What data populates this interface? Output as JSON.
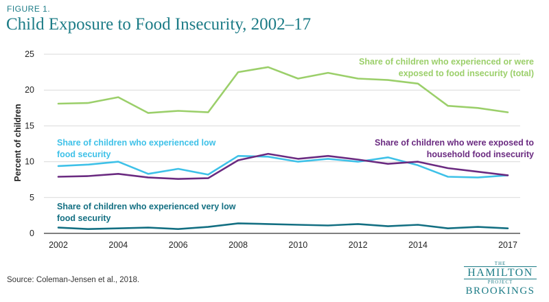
{
  "header": {
    "figure_label": "FIGURE 1.",
    "title": "Child Exposure to Food Insecurity, 2002–17"
  },
  "footer": {
    "source": "Source: Coleman-Jensen et al., 2018."
  },
  "logo": {
    "the": "THE",
    "hamilton": "HAMILTON",
    "project": "PROJECT",
    "brookings": "BROOKINGS"
  },
  "chart_data": {
    "type": "line",
    "title": "Child Exposure to Food Insecurity, 2002–17",
    "xlabel": "",
    "ylabel": "Percent of children",
    "ylim": [
      0,
      25
    ],
    "xlim": [
      2002,
      2017
    ],
    "y_ticks": [
      0,
      5,
      10,
      15,
      20,
      25
    ],
    "x_ticks": [
      2002,
      2004,
      2006,
      2008,
      2010,
      2012,
      2014,
      2017
    ],
    "grid": true,
    "x": [
      2002,
      2003,
      2004,
      2005,
      2006,
      2007,
      2008,
      2009,
      2010,
      2011,
      2012,
      2013,
      2014,
      2015,
      2016,
      2017
    ],
    "series": [
      {
        "name": "Share of children who experienced or were exposed to food insecurity (total)",
        "label_lines": [
          "Share of children who experienced or were",
          "exposed to food insecurity (total)"
        ],
        "color": "#9bcf6a",
        "values": [
          18.1,
          18.2,
          19.0,
          16.8,
          17.1,
          16.9,
          22.5,
          23.2,
          21.6,
          22.4,
          21.6,
          21.4,
          20.9,
          17.8,
          17.5,
          16.9
        ]
      },
      {
        "name": "Share of children who experienced low food security",
        "label_lines": [
          "Share of children who experienced low",
          "food security"
        ],
        "color": "#3ec1e8",
        "values": [
          9.4,
          9.6,
          10.0,
          8.3,
          9.0,
          8.2,
          10.8,
          10.7,
          10.0,
          10.4,
          10.0,
          10.6,
          9.5,
          7.9,
          7.8,
          8.1
        ]
      },
      {
        "name": "Share of children who were exposed to household food insecurity",
        "label_lines": [
          "Share of children who were exposed to",
          "household food insecurity"
        ],
        "color": "#6a2a80",
        "values": [
          7.9,
          8.0,
          8.3,
          7.8,
          7.6,
          7.7,
          10.2,
          11.1,
          10.4,
          10.8,
          10.3,
          9.7,
          10.0,
          9.1,
          8.6,
          8.1
        ]
      },
      {
        "name": "Share of children who experienced very low food security",
        "label_lines": [
          "Share of children who experienced very low",
          "food security"
        ],
        "color": "#136f82",
        "values": [
          0.8,
          0.6,
          0.7,
          0.8,
          0.6,
          0.9,
          1.4,
          1.3,
          1.2,
          1.1,
          1.3,
          1.0,
          1.2,
          0.7,
          0.9,
          0.7
        ]
      }
    ]
  }
}
